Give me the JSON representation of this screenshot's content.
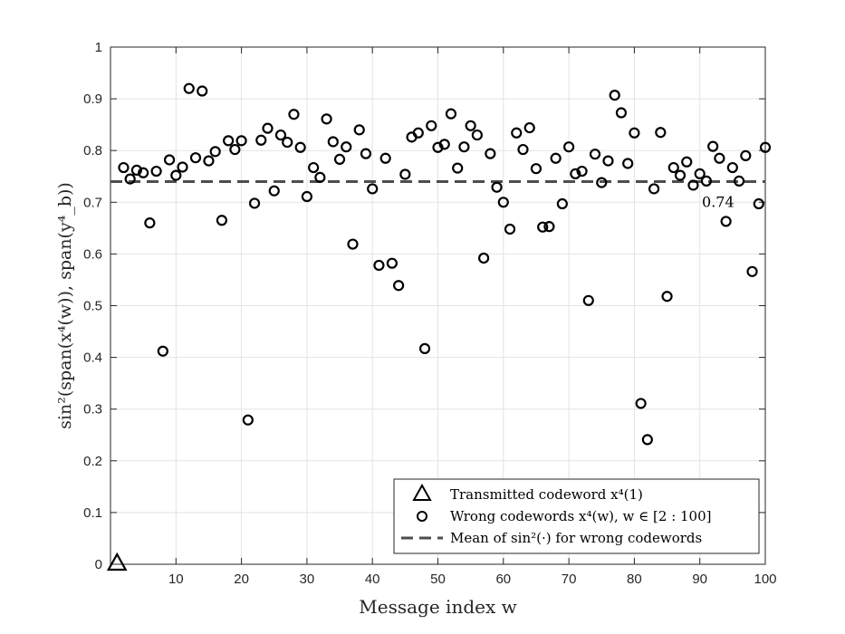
{
  "chart_data": {
    "type": "scatter",
    "xlabel": "Message index w",
    "ylabel": "sin²(span(x⁴(w)), span(y⁴_b))",
    "xlim": [
      0,
      100
    ],
    "ylim": [
      0,
      1
    ],
    "xticks": [
      10,
      20,
      30,
      40,
      50,
      60,
      70,
      80,
      90,
      100
    ],
    "yticks": [
      0,
      0.1,
      0.2,
      0.3,
      0.4,
      0.5,
      0.6,
      0.7,
      0.8,
      0.9,
      1
    ],
    "grid": true,
    "legend_position": "bottom-right",
    "series": [
      {
        "name": "Transmitted codeword x⁴(1)",
        "marker": "triangle",
        "x": [
          1
        ],
        "y": [
          0.0
        ]
      },
      {
        "name": "Wrong codewords x⁴(w), w ∈ [2 : 100]",
        "marker": "circle",
        "x": [
          2,
          3,
          4,
          5,
          6,
          7,
          8,
          9,
          10,
          11,
          12,
          13,
          14,
          15,
          16,
          17,
          18,
          19,
          20,
          21,
          22,
          23,
          24,
          25,
          26,
          27,
          28,
          29,
          30,
          31,
          32,
          33,
          34,
          35,
          36,
          37,
          38,
          39,
          40,
          41,
          42,
          43,
          44,
          45,
          46,
          47,
          48,
          49,
          50,
          51,
          52,
          53,
          54,
          55,
          56,
          57,
          58,
          59,
          60,
          61,
          62,
          63,
          64,
          65,
          66,
          67,
          68,
          69,
          70,
          71,
          72,
          73,
          74,
          75,
          76,
          77,
          78,
          79,
          80,
          81,
          82,
          83,
          84,
          85,
          86,
          87,
          88,
          89,
          90,
          91,
          92,
          93,
          94,
          95,
          96,
          97,
          98,
          99,
          100
        ],
        "y": [
          0.767,
          0.745,
          0.762,
          0.757,
          0.66,
          0.76,
          0.412,
          0.782,
          0.752,
          0.768,
          0.92,
          0.786,
          0.915,
          0.78,
          0.798,
          0.665,
          0.819,
          0.802,
          0.819,
          0.279,
          0.698,
          0.82,
          0.843,
          0.722,
          0.83,
          0.816,
          0.87,
          0.806,
          0.711,
          0.767,
          0.748,
          0.861,
          0.817,
          0.783,
          0.807,
          0.619,
          0.84,
          0.794,
          0.726,
          0.578,
          0.785,
          0.582,
          0.539,
          0.754,
          0.826,
          0.834,
          0.417,
          0.848,
          0.806,
          0.812,
          0.871,
          0.766,
          0.807,
          0.848,
          0.83,
          0.592,
          0.794,
          0.729,
          0.7,
          0.648,
          0.834,
          0.802,
          0.844,
          0.765,
          0.652,
          0.653,
          0.785,
          0.697,
          0.807,
          0.755,
          0.76,
          0.51,
          0.793,
          0.738,
          0.78,
          0.907,
          0.873,
          0.775,
          0.834,
          0.311,
          0.241,
          0.726,
          0.835,
          0.518,
          0.767,
          0.752,
          0.778,
          0.733,
          0.755,
          0.741,
          0.808,
          0.785,
          0.663,
          0.767,
          0.741,
          0.79,
          0.566,
          0.697,
          0.806
        ]
      },
      {
        "name": "Mean of sin²(·) for wrong codewords",
        "marker": "dashed-line",
        "y": 0.74
      }
    ],
    "annotations": [
      {
        "text": "0.74",
        "x": 95,
        "y": 0.74
      }
    ]
  }
}
